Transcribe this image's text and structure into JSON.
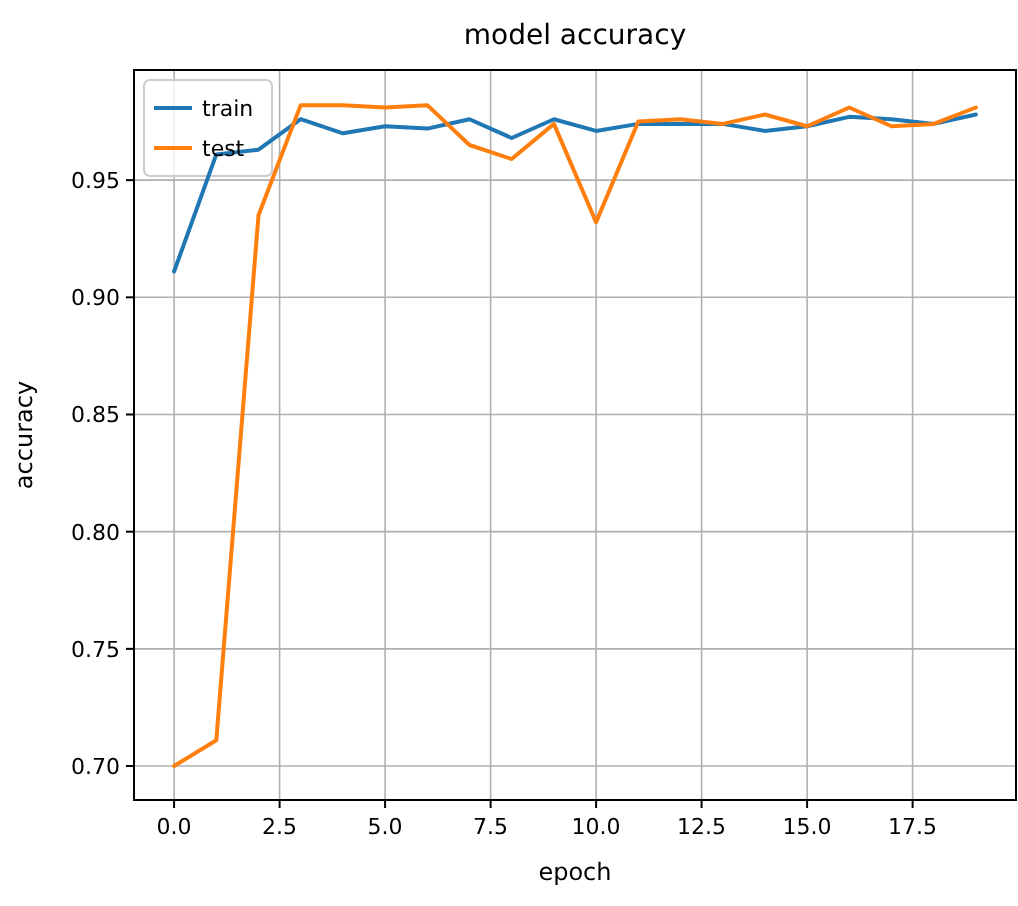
{
  "chart_data": {
    "type": "line",
    "title": "model accuracy",
    "xlabel": "epoch",
    "ylabel": "accuracy",
    "x": [
      0,
      1,
      2,
      3,
      4,
      5,
      6,
      7,
      8,
      9,
      10,
      11,
      12,
      13,
      14,
      15,
      16,
      17,
      18,
      19
    ],
    "series": [
      {
        "name": "train",
        "color": "#1f77b4",
        "values": [
          0.911,
          0.961,
          0.963,
          0.976,
          0.97,
          0.973,
          0.972,
          0.976,
          0.968,
          0.976,
          0.971,
          0.974,
          0.974,
          0.974,
          0.971,
          0.973,
          0.977,
          0.976,
          0.974,
          0.978
        ]
      },
      {
        "name": "test",
        "color": "#ff7f0e",
        "values": [
          0.7,
          0.711,
          0.935,
          0.982,
          0.982,
          0.981,
          0.982,
          0.965,
          0.959,
          0.974,
          0.932,
          0.975,
          0.976,
          0.974,
          0.978,
          0.973,
          0.981,
          0.973,
          0.974,
          0.981
        ]
      }
    ],
    "xlim": [
      -0.95,
      19.95
    ],
    "xticks": [
      {
        "value": 0,
        "label": "0.0"
      },
      {
        "value": 2.5,
        "label": "2.5"
      },
      {
        "value": 5,
        "label": "5.0"
      },
      {
        "value": 7.5,
        "label": "7.5"
      },
      {
        "value": 10,
        "label": "10.0"
      },
      {
        "value": 12.5,
        "label": "12.5"
      },
      {
        "value": 15,
        "label": "15.0"
      },
      {
        "value": 17.5,
        "label": "17.5"
      }
    ],
    "ylim": [
      0.6855,
      0.997
    ],
    "yticks": [
      {
        "value": 0.7,
        "label": "0.70"
      },
      {
        "value": 0.75,
        "label": "0.75"
      },
      {
        "value": 0.8,
        "label": "0.80"
      },
      {
        "value": 0.85,
        "label": "0.85"
      },
      {
        "value": 0.9,
        "label": "0.90"
      },
      {
        "value": 0.95,
        "label": "0.95"
      }
    ],
    "grid": true,
    "legend": "top left"
  }
}
